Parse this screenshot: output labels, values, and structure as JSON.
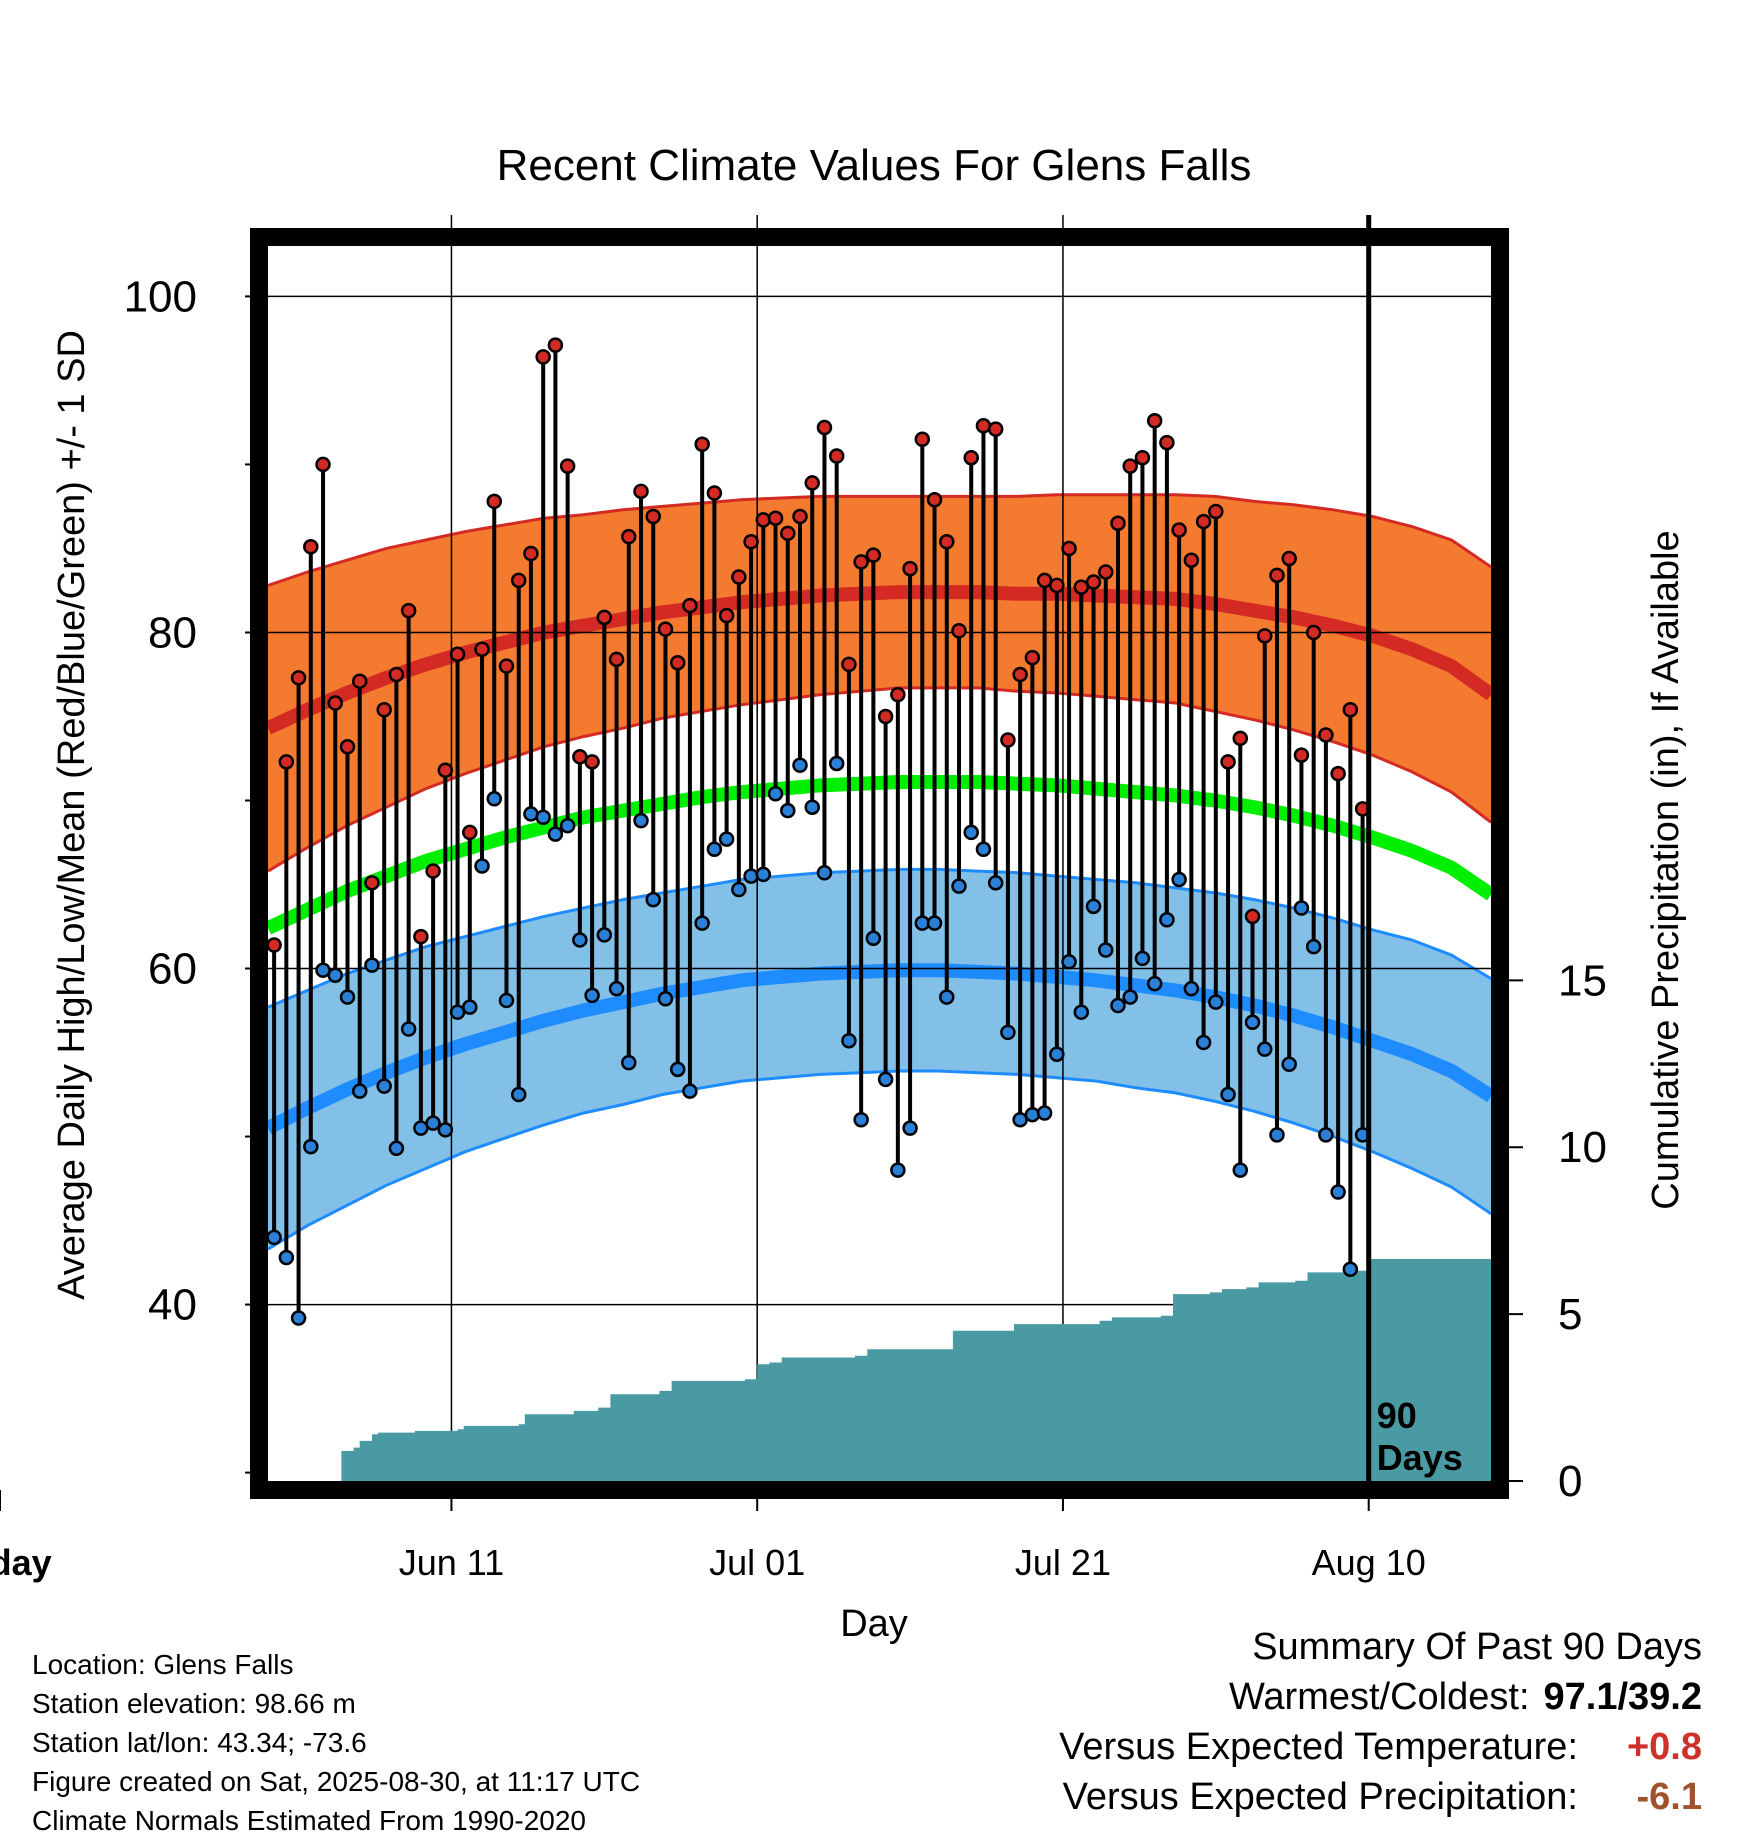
{
  "chart_data": {
    "type": "line",
    "title": "Recent Climate Values For Glens Falls",
    "xlabel": "Day",
    "ylabel": "Average Daily High/Low/Mean (Red/Blue/Green) +/- 1 SD",
    "y2label": "Cumulative Precipitation (in), If Available",
    "x_ticks": [
      "Jun 11",
      "Jul 01",
      "Jul 21",
      "Aug 10",
      "Today"
    ],
    "y_ticks": [
      "100",
      "80",
      "60",
      "40"
    ],
    "y2_ticks": [
      "15",
      "10",
      "5",
      "0"
    ],
    "ylim": [
      29.5,
      103
    ],
    "y2lim": [
      0,
      37
    ],
    "n_days": 100,
    "today_day": 90,
    "today_label": "90 Days",
    "gridlines": true,
    "colors": {
      "high_band": "#f47a30",
      "high_line": "#d42a24",
      "low_band": "#82c0e8",
      "low_line": "#1e8cff",
      "mean_line": "#00ee00",
      "precip": "#4a9aa4",
      "high_dot": "#d42a24",
      "low_dot": "#2a80d6"
    },
    "normals": {
      "high_mean": [
        74.3,
        75.4,
        76.4,
        77.3,
        78.1,
        78.8,
        79.4,
        80.0,
        80.4,
        80.8,
        81.2,
        81.5,
        81.8,
        82.0,
        82.2,
        82.3,
        82.4,
        82.4,
        82.4,
        82.3,
        82.3,
        82.2,
        82.1,
        82.0,
        81.7,
        81.3,
        80.9,
        80.4,
        79.8,
        79.0,
        78.0,
        76.3
      ],
      "high_sd": [
        8.5,
        8.2,
        7.9,
        7.7,
        7.4,
        7.2,
        7.0,
        6.8,
        6.6,
        6.5,
        6.3,
        6.2,
        6.1,
        6.0,
        5.9,
        5.8,
        5.7,
        5.7,
        5.7,
        5.8,
        5.9,
        6.0,
        6.1,
        6.2,
        6.4,
        6.5,
        6.7,
        6.9,
        7.1,
        7.3,
        7.5,
        7.6
      ],
      "low_mean": [
        50.5,
        51.7,
        52.8,
        53.8,
        54.7,
        55.5,
        56.2,
        56.9,
        57.5,
        58.0,
        58.5,
        58.9,
        59.3,
        59.5,
        59.7,
        59.8,
        59.9,
        59.9,
        59.8,
        59.7,
        59.5,
        59.3,
        59.0,
        58.7,
        58.3,
        57.8,
        57.2,
        56.5,
        55.7,
        54.9,
        53.9,
        52.4
      ],
      "low_sd": [
        7.2,
        7.0,
        6.9,
        6.7,
        6.6,
        6.4,
        6.3,
        6.2,
        6.1,
        6.1,
        6.0,
        6.0,
        6.0,
        6.0,
        6.0,
        6.0,
        6.0,
        6.0,
        6.0,
        6.0,
        6.0,
        6.0,
        6.1,
        6.1,
        6.2,
        6.3,
        6.4,
        6.5,
        6.6,
        6.8,
        6.9,
        7.0
      ],
      "avg_mean": [
        62.4,
        63.5,
        64.6,
        65.5,
        66.4,
        67.1,
        67.8,
        68.4,
        69.0,
        69.4,
        69.8,
        70.2,
        70.5,
        70.7,
        70.9,
        71.0,
        71.1,
        71.1,
        71.1,
        71.0,
        70.9,
        70.7,
        70.5,
        70.3,
        70.0,
        69.6,
        69.1,
        68.5,
        67.8,
        67.0,
        66.0,
        64.4
      ]
    },
    "daily": [
      {
        "day": 1,
        "high": 61.4,
        "low": 44.0
      },
      {
        "day": 2,
        "high": 72.3,
        "low": 42.8
      },
      {
        "day": 3,
        "high": 77.3,
        "low": 39.2
      },
      {
        "day": 4,
        "high": 85.1,
        "low": 49.4
      },
      {
        "day": 5,
        "high": 90.0,
        "low": 59.9
      },
      {
        "day": 6,
        "high": 75.8,
        "low": 59.6
      },
      {
        "day": 7,
        "high": 73.2,
        "low": 58.3
      },
      {
        "day": 8,
        "high": 77.1,
        "low": 52.7
      },
      {
        "day": 9,
        "high": 65.1,
        "low": 60.2
      },
      {
        "day": 10,
        "high": 75.4,
        "low": 53.0
      },
      {
        "day": 11,
        "high": 77.5,
        "low": 49.3
      },
      {
        "day": 12,
        "high": 81.3,
        "low": 56.4
      },
      {
        "day": 13,
        "high": 61.9,
        "low": 50.5
      },
      {
        "day": 14,
        "high": 65.8,
        "low": 50.8
      },
      {
        "day": 15,
        "high": 71.8,
        "low": 50.4
      },
      {
        "day": 16,
        "high": 78.7,
        "low": 57.4
      },
      {
        "day": 17,
        "high": 68.1,
        "low": 57.7
      },
      {
        "day": 18,
        "high": 79.0,
        "low": 66.1
      },
      {
        "day": 19,
        "high": 87.8,
        "low": 70.1
      },
      {
        "day": 20,
        "high": 78.0,
        "low": 58.1
      },
      {
        "day": 21,
        "high": 83.1,
        "low": 52.5
      },
      {
        "day": 22,
        "high": 84.7,
        "low": 69.2
      },
      {
        "day": 23,
        "high": 96.4,
        "low": 69.0
      },
      {
        "day": 24,
        "high": 97.1,
        "low": 68.0
      },
      {
        "day": 25,
        "high": 89.9,
        "low": 68.5
      },
      {
        "day": 26,
        "high": 72.6,
        "low": 61.7
      },
      {
        "day": 27,
        "high": 72.3,
        "low": 58.4
      },
      {
        "day": 28,
        "high": 80.9,
        "low": 62.0
      },
      {
        "day": 29,
        "high": 78.4,
        "low": 58.8
      },
      {
        "day": 30,
        "high": 85.7,
        "low": 54.4
      },
      {
        "day": 31,
        "high": 88.4,
        "low": 68.8
      },
      {
        "day": 32,
        "high": 86.9,
        "low": 64.1
      },
      {
        "day": 33,
        "high": 80.2,
        "low": 58.2
      },
      {
        "day": 34,
        "high": 78.2,
        "low": 54.0
      },
      {
        "day": 35,
        "high": 81.6,
        "low": 52.7
      },
      {
        "day": 36,
        "high": 91.2,
        "low": 62.7
      },
      {
        "day": 37,
        "high": 88.3,
        "low": 67.1
      },
      {
        "day": 38,
        "high": 81.0,
        "low": 67.7
      },
      {
        "day": 39,
        "high": 83.3,
        "low": 64.7
      },
      {
        "day": 40,
        "high": 85.4,
        "low": 65.5
      },
      {
        "day": 41,
        "high": 86.7,
        "low": 65.6
      },
      {
        "day": 42,
        "high": 86.8,
        "low": 70.4
      },
      {
        "day": 43,
        "high": 85.9,
        "low": 69.4
      },
      {
        "day": 44,
        "high": 86.9,
        "low": 72.1
      },
      {
        "day": 45,
        "high": 88.9,
        "low": 69.6
      },
      {
        "day": 46,
        "high": 92.2,
        "low": 65.7
      },
      {
        "day": 47,
        "high": 90.5,
        "low": 72.2
      },
      {
        "day": 48,
        "high": 78.1,
        "low": 55.7
      },
      {
        "day": 49,
        "high": 84.2,
        "low": 51.0
      },
      {
        "day": 50,
        "high": 84.6,
        "low": 61.8
      },
      {
        "day": 51,
        "high": 75.0,
        "low": 53.4
      },
      {
        "day": 52,
        "high": 76.3,
        "low": 48.0
      },
      {
        "day": 53,
        "high": 83.8,
        "low": 50.5
      },
      {
        "day": 54,
        "high": 91.5,
        "low": 62.7
      },
      {
        "day": 55,
        "high": 87.9,
        "low": 62.7
      },
      {
        "day": 56,
        "high": 85.4,
        "low": 58.3
      },
      {
        "day": 57,
        "high": 80.1,
        "low": 64.9
      },
      {
        "day": 58,
        "high": 90.4,
        "low": 68.1
      },
      {
        "day": 59,
        "high": 92.3,
        "low": 67.1
      },
      {
        "day": 60,
        "high": 92.1,
        "low": 65.1
      },
      {
        "day": 61,
        "high": 73.6,
        "low": 56.2
      },
      {
        "day": 62,
        "high": 77.5,
        "low": 51.0
      },
      {
        "day": 63,
        "high": 78.5,
        "low": 51.3
      },
      {
        "day": 64,
        "high": 83.1,
        "low": 51.4
      },
      {
        "day": 65,
        "high": 82.8,
        "low": 54.9
      },
      {
        "day": 66,
        "high": 85.0,
        "low": 60.4
      },
      {
        "day": 67,
        "high": 82.7,
        "low": 57.4
      },
      {
        "day": 68,
        "high": 83.0,
        "low": 63.7
      },
      {
        "day": 69,
        "high": 83.6,
        "low": 61.1
      },
      {
        "day": 70,
        "high": 86.5,
        "low": 57.8
      },
      {
        "day": 71,
        "high": 89.9,
        "low": 58.3
      },
      {
        "day": 72,
        "high": 90.4,
        "low": 60.6
      },
      {
        "day": 73,
        "high": 92.6,
        "low": 59.1
      },
      {
        "day": 74,
        "high": 91.3,
        "low": 62.9
      },
      {
        "day": 75,
        "high": 86.1,
        "low": 65.3
      },
      {
        "day": 76,
        "high": 84.3,
        "low": 58.8
      },
      {
        "day": 77,
        "high": 86.6,
        "low": 55.6
      },
      {
        "day": 78,
        "high": 87.2,
        "low": 58.0
      },
      {
        "day": 79,
        "high": 72.3,
        "low": 52.5
      },
      {
        "day": 80,
        "high": 73.7,
        "low": 48.0
      },
      {
        "day": 81,
        "high": 63.1,
        "low": 56.8
      },
      {
        "day": 82,
        "high": 79.8,
        "low": 55.2
      },
      {
        "day": 83,
        "high": 83.4,
        "low": 50.1
      },
      {
        "day": 84,
        "high": 84.4,
        "low": 54.3
      },
      {
        "day": 85,
        "high": 72.7,
        "low": 63.6
      },
      {
        "day": 86,
        "high": 80.0,
        "low": 61.3
      },
      {
        "day": 87,
        "high": 73.9,
        "low": 50.1
      },
      {
        "day": 88,
        "high": 71.6,
        "low": 46.7
      },
      {
        "day": 89,
        "high": 75.4,
        "low": 42.1
      },
      {
        "day": 90,
        "high": 69.5,
        "low": 50.1
      }
    ],
    "precip_cumulative": [
      [
        0,
        0
      ],
      [
        5.0,
        0
      ],
      [
        6.0,
        0.9
      ],
      [
        7.0,
        1.0
      ],
      [
        7.5,
        1.2
      ],
      [
        8.5,
        1.4
      ],
      [
        9.0,
        1.45
      ],
      [
        12.0,
        1.5
      ],
      [
        15.5,
        1.55
      ],
      [
        16.0,
        1.65
      ],
      [
        20.5,
        1.7
      ],
      [
        21.0,
        2.0
      ],
      [
        25.0,
        2.1
      ],
      [
        27.0,
        2.2
      ],
      [
        28.0,
        2.6
      ],
      [
        32.0,
        2.7
      ],
      [
        33.0,
        3.0
      ],
      [
        39.0,
        3.05
      ],
      [
        40.0,
        3.5
      ],
      [
        41.0,
        3.55
      ],
      [
        42.0,
        3.7
      ],
      [
        48.0,
        3.75
      ],
      [
        49.0,
        3.95
      ],
      [
        55.0,
        3.95
      ],
      [
        56.0,
        4.5
      ],
      [
        60.0,
        4.5
      ],
      [
        61.0,
        4.7
      ],
      [
        68.0,
        4.8
      ],
      [
        69.0,
        4.9
      ],
      [
        73.0,
        4.95
      ],
      [
        74.0,
        5.6
      ],
      [
        77.0,
        5.65
      ],
      [
        78.0,
        5.75
      ],
      [
        80.0,
        5.8
      ],
      [
        81.0,
        5.95
      ],
      [
        84.0,
        6.0
      ],
      [
        85.0,
        6.25
      ],
      [
        89.0,
        6.3
      ],
      [
        90.0,
        6.65
      ],
      [
        100.0,
        6.65
      ]
    ]
  },
  "station": {
    "location": "Location: Glens Falls",
    "elevation": "Station elevation: 98.66 m",
    "latlon": "Station lat/lon: 43.34; -73.6",
    "created": "Figure created on Sat, 2025-08-30, at 11:17 UTC",
    "normals": "Climate Normals Estimated From 1990-2020"
  },
  "summary": {
    "heading": "Summary Of Past 90 Days",
    "warm_cold_label": "Warmest/Coldest:",
    "warm_cold_value": "97.1/39.2",
    "temp_label": "Versus Expected Temperature:",
    "temp_value": "+0.8",
    "temp_color": "#d0302a",
    "precip_label": "Versus Expected Precipitation:",
    "precip_value": "-6.1",
    "precip_color": "#a0522d"
  }
}
